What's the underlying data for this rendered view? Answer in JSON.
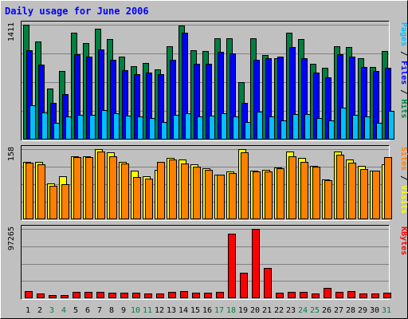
{
  "chart_data": [
    {
      "type": "bar",
      "title": "Daily usage for June 2006",
      "ymax_label": "1411",
      "ylabel_parts": [
        {
          "text": "Pages",
          "color": "#00c0ff"
        },
        {
          "text": " / ",
          "color": "#000000"
        },
        {
          "text": "Files",
          "color": "#0000ff"
        },
        {
          "text": " / ",
          "color": "#000000"
        },
        {
          "text": "Hits",
          "color": "#008040"
        }
      ],
      "ylim": [
        0,
        1411
      ],
      "categories": [
        "1",
        "2",
        "3",
        "4",
        "5",
        "6",
        "7",
        "8",
        "9",
        "10",
        "11",
        "12",
        "13",
        "14",
        "15",
        "16",
        "17",
        "18",
        "19",
        "20",
        "21",
        "22",
        "23",
        "24",
        "25",
        "26",
        "27",
        "28",
        "29",
        "30",
        "31"
      ],
      "weekend_days": [
        "3",
        "4",
        "10",
        "11",
        "17",
        "18",
        "24",
        "25",
        "31"
      ],
      "series": [
        {
          "name": "Hits",
          "color": "#008040",
          "values": [
            1411,
            1202,
            624,
            840,
            1310,
            1190,
            1360,
            1230,
            1020,
            900,
            940,
            860,
            1150,
            1400,
            1100,
            1090,
            1240,
            1240,
            710,
            1240,
            1040,
            1000,
            1310,
            1230,
            930,
            880,
            1150,
            1140,
            1000,
            890,
            1090
          ]
        },
        {
          "name": "Files",
          "color": "#0000ff",
          "values": [
            1100,
            920,
            450,
            560,
            1050,
            1020,
            1110,
            980,
            850,
            800,
            820,
            800,
            980,
            1310,
            930,
            930,
            1080,
            1060,
            450,
            980,
            1000,
            1020,
            1140,
            1000,
            820,
            760,
            1050,
            1020,
            890,
            840,
            880
          ]
        },
        {
          "name": "Pages",
          "color": "#00c0ff",
          "values": [
            420,
            330,
            210,
            280,
            300,
            300,
            360,
            320,
            290,
            280,
            260,
            220,
            300,
            320,
            280,
            290,
            320,
            280,
            220,
            340,
            280,
            240,
            310,
            310,
            260,
            240,
            390,
            300,
            280,
            210,
            350
          ]
        }
      ]
    },
    {
      "type": "bar",
      "ymax_label": "158",
      "ylabel_parts": [
        {
          "text": "Sites",
          "color": "#ff8000"
        },
        {
          "text": " / ",
          "color": "#000000"
        },
        {
          "text": "Visits",
          "color": "#ffff00"
        }
      ],
      "ylim": [
        0,
        158
      ],
      "categories": [
        "1",
        "2",
        "3",
        "4",
        "5",
        "6",
        "7",
        "8",
        "9",
        "10",
        "11",
        "12",
        "13",
        "14",
        "15",
        "16",
        "17",
        "18",
        "19",
        "20",
        "21",
        "22",
        "23",
        "24",
        "25",
        "26",
        "27",
        "28",
        "29",
        "30",
        "31"
      ],
      "series": [
        {
          "name": "Visits",
          "color": "#ffff00",
          "values": [
            130,
            130,
            80,
            97,
            142,
            142,
            158,
            150,
            130,
            110,
            97,
            112,
            138,
            135,
            123,
            115,
            100,
            108,
            158,
            110,
            111,
            116,
            152,
            138,
            120,
            90,
            152,
            135,
            120,
            110,
            123
          ]
        },
        {
          "name": "Sites",
          "color": "#ff8000",
          "values": [
            128,
            123,
            75,
            79,
            140,
            140,
            152,
            142,
            125,
            95,
            92,
            130,
            135,
            126,
            118,
            112,
            100,
            104,
            150,
            107,
            108,
            115,
            141,
            130,
            118,
            88,
            146,
            128,
            113,
            109,
            140
          ]
        }
      ]
    },
    {
      "type": "bar",
      "ymax_label": "97265",
      "ylabel_parts": [
        {
          "text": "KBytes",
          "color": "#ff0000"
        }
      ],
      "ylim": [
        0,
        97265
      ],
      "categories": [
        "1",
        "2",
        "3",
        "4",
        "5",
        "6",
        "7",
        "8",
        "9",
        "10",
        "11",
        "12",
        "13",
        "14",
        "15",
        "16",
        "17",
        "18",
        "19",
        "20",
        "21",
        "22",
        "23",
        "24",
        "25",
        "26",
        "27",
        "28",
        "29",
        "30",
        "31"
      ],
      "series": [
        {
          "name": "KBytes",
          "color": "#ff0000",
          "values": [
            9800,
            7200,
            4100,
            4100,
            8600,
            8800,
            9400,
            8100,
            7600,
            7500,
            7200,
            7100,
            8600,
            10600,
            7300,
            7600,
            8600,
            91000,
            36000,
            97265,
            43000,
            8300,
            9100,
            9400,
            6400,
            14500,
            9500,
            10400,
            7200,
            6400,
            7700
          ]
        }
      ]
    }
  ]
}
